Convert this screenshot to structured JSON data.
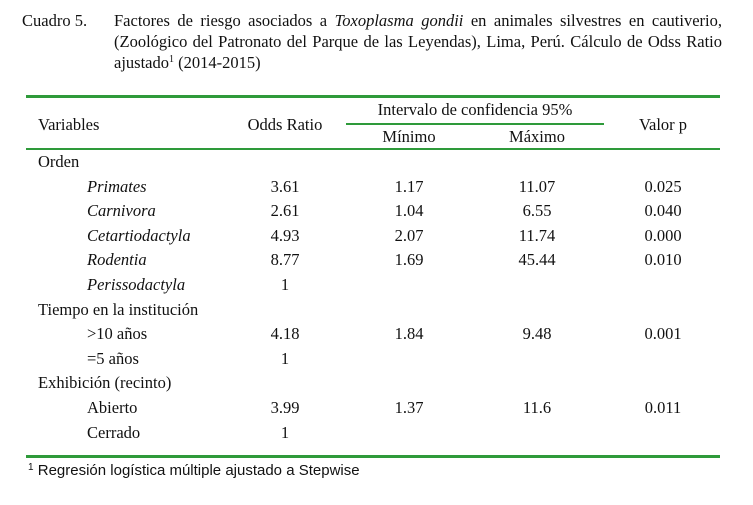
{
  "caption": {
    "label": "Cuadro 5.",
    "text_pre": "Factores de riesgo asociados a ",
    "species": "Toxoplasma gondii",
    "text_post": " en animales silvestres en cautiverio, (Zoológico del Patronato del Parque de las Leyendas), Lima, Perú. Cálculo de Odss Ratio ajustado",
    "sup": "1",
    "years": " (2014-2015)"
  },
  "table": {
    "headers": {
      "variables": "Variables",
      "odds_ratio": "Odds Ratio",
      "ci": "Intervalo de confidencia 95%",
      "min": "Mínimo",
      "max": "Máximo",
      "p": "Valor p"
    },
    "rows": [
      {
        "label": "Orden",
        "type": "group"
      },
      {
        "label": "Primates",
        "type": "item",
        "italic": true,
        "or": "3.61",
        "min": "1.17",
        "max": "11.07",
        "p": "0.025"
      },
      {
        "label": "Carnivora",
        "type": "item",
        "italic": true,
        "or": "2.61",
        "min": "1.04",
        "max": "6.55",
        "p": "0.040"
      },
      {
        "label": "Cetartiodactyla",
        "type": "item",
        "italic": true,
        "or": "4.93",
        "min": "2.07",
        "max": "11.74",
        "p": "0.000"
      },
      {
        "label": "Rodentia",
        "type": "item",
        "italic": true,
        "or": "8.77",
        "min": "1.69",
        "max": "45.44",
        "p": "0.010"
      },
      {
        "label": "Perissodactyla",
        "type": "item",
        "italic": true,
        "or": "1",
        "min": "",
        "max": "",
        "p": ""
      },
      {
        "label": "Tiempo en la institución",
        "type": "group"
      },
      {
        "label": ">10 años",
        "type": "item",
        "italic": false,
        "or": "4.18",
        "min": "1.84",
        "max": "9.48",
        "p": "0.001"
      },
      {
        "label": "=5 años",
        "type": "item",
        "italic": false,
        "or": "1",
        "min": "",
        "max": "",
        "p": ""
      },
      {
        "label": "Exhibición (recinto)",
        "type": "group"
      },
      {
        "label": "Abierto",
        "type": "item",
        "italic": false,
        "or": "3.99",
        "min": "1.37",
        "max": "11.6",
        "p": "0.011"
      },
      {
        "label": "Cerrado",
        "type": "item",
        "italic": false,
        "or": "1",
        "min": "",
        "max": "",
        "p": ""
      }
    ]
  },
  "footnote": {
    "sup": "1",
    "text": " Regresión logística múltiple ajustado a Stepwise"
  },
  "colors": {
    "rule": "#2e9a3a"
  }
}
